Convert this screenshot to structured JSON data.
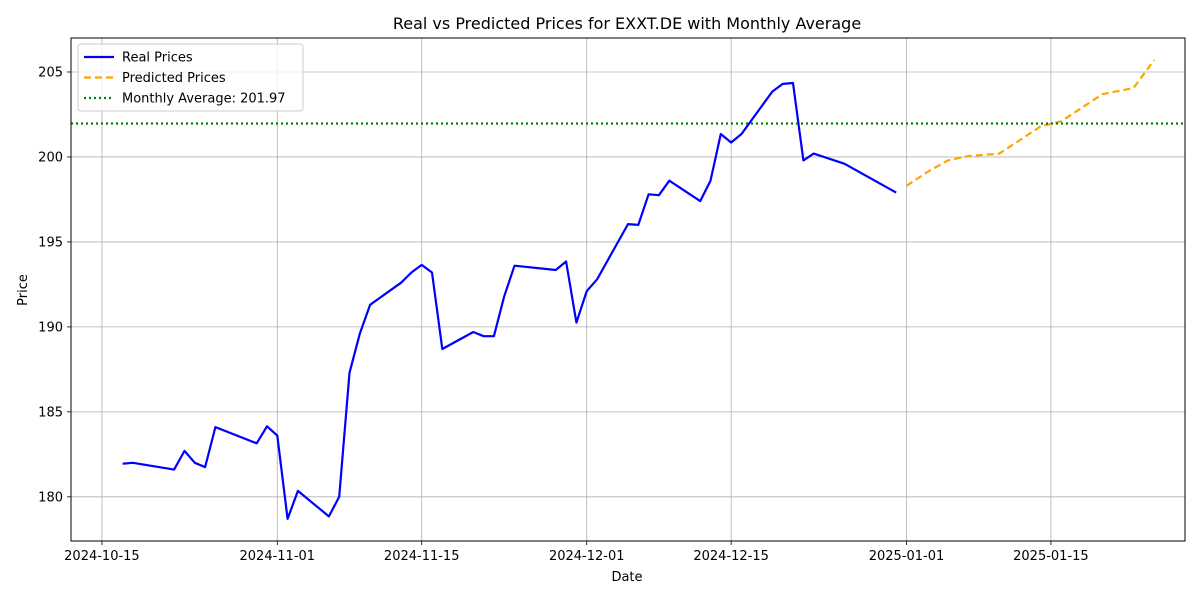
{
  "chart_data": {
    "type": "line",
    "title": "Real vs Predicted Prices for EXXT.DE with Monthly Average",
    "xlabel": "Date",
    "ylabel": "Price",
    "xlim": [
      "2024-10-12",
      "2025-01-28"
    ],
    "ylim": [
      177.4,
      207.0
    ],
    "x_ticks": [
      "2024-10-15",
      "2024-11-01",
      "2024-11-15",
      "2024-12-01",
      "2024-12-15",
      "2025-01-01",
      "2025-01-15"
    ],
    "y_ticks": [
      180,
      185,
      190,
      195,
      200,
      205
    ],
    "grid": true,
    "legend_position": "upper-left",
    "series": [
      {
        "name": "Real Prices",
        "style": "solid",
        "color": "#0000ff",
        "x": [
          "2024-10-17",
          "2024-10-18",
          "2024-10-22",
          "2024-10-23",
          "2024-10-24",
          "2024-10-25",
          "2024-10-26",
          "2024-10-30",
          "2024-10-31",
          "2024-11-01",
          "2024-11-02",
          "2024-11-03",
          "2024-11-06",
          "2024-11-07",
          "2024-11-08",
          "2024-11-09",
          "2024-11-10",
          "2024-11-13",
          "2024-11-14",
          "2024-11-15",
          "2024-11-16",
          "2024-11-17",
          "2024-11-20",
          "2024-11-21",
          "2024-11-22",
          "2024-11-23",
          "2024-11-24",
          "2024-11-28",
          "2024-11-29",
          "2024-11-30",
          "2024-12-01",
          "2024-12-02",
          "2024-12-05",
          "2024-12-06",
          "2024-12-07",
          "2024-12-08",
          "2024-12-09",
          "2024-12-12",
          "2024-12-13",
          "2024-12-14",
          "2024-12-15",
          "2024-12-16",
          "2024-12-19",
          "2024-12-20",
          "2024-12-21",
          "2024-12-22",
          "2024-12-23",
          "2024-12-26",
          "2024-12-31"
        ],
        "values": [
          181.95,
          182.0,
          181.6,
          182.7,
          182.0,
          181.75,
          184.1,
          183.15,
          184.15,
          183.6,
          178.7,
          180.35,
          178.85,
          180.0,
          187.3,
          189.6,
          191.3,
          192.6,
          193.2,
          193.65,
          193.2,
          188.7,
          189.7,
          189.45,
          189.45,
          191.8,
          193.6,
          193.35,
          193.85,
          190.25,
          192.1,
          192.8,
          196.05,
          196.0,
          197.8,
          197.75,
          198.6,
          197.4,
          198.6,
          201.35,
          200.85,
          201.35,
          203.85,
          204.3,
          204.35,
          199.8,
          200.2,
          199.6,
          197.9
        ]
      },
      {
        "name": "Predicted Prices",
        "style": "dashed",
        "color": "#ffa500",
        "x": [
          "2025-01-01",
          "2025-01-03",
          "2025-01-05",
          "2025-01-07",
          "2025-01-10",
          "2025-01-12",
          "2025-01-14",
          "2025-01-16",
          "2025-01-18",
          "2025-01-20",
          "2025-01-23",
          "2025-01-25"
        ],
        "values": [
          198.3,
          199.1,
          199.8,
          200.05,
          200.2,
          201.0,
          201.8,
          202.1,
          202.9,
          203.7,
          204.05,
          205.7
        ]
      },
      {
        "name": "Monthly Average: 201.97",
        "style": "dotted",
        "color": "#008000",
        "value": 201.97
      }
    ]
  }
}
